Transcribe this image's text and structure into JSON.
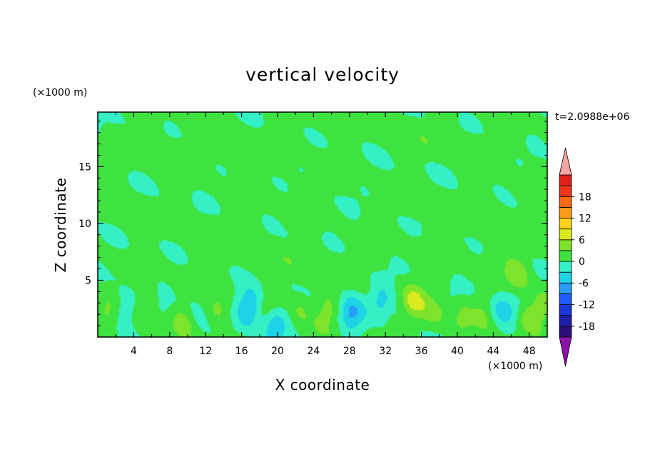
{
  "chart_data": {
    "type": "heatmap",
    "title": "vertical velocity",
    "xlabel": "X coordinate",
    "ylabel": "Z coordinate",
    "x_unit": "(×1000 m)",
    "y_unit": "(×1000 m)",
    "time_label": "t=2.0988e+06",
    "xlim": [
      0,
      50
    ],
    "ylim": [
      0,
      19.8
    ],
    "x_ticks": [
      4,
      8,
      12,
      16,
      20,
      24,
      28,
      32,
      36,
      40,
      44,
      48
    ],
    "y_ticks": [
      5,
      10,
      15
    ],
    "colorbar": {
      "levels": [
        -21,
        -18,
        -15,
        -12,
        -9,
        -6,
        -3,
        0,
        3,
        6,
        9,
        12,
        15,
        18,
        21
      ],
      "labels": [
        -18,
        -12,
        -6,
        0,
        6,
        12,
        18
      ],
      "colors": [
        "#2d0d7a",
        "#1f1fa8",
        "#1a35d9",
        "#1d5cff",
        "#2a9cf7",
        "#1fd3e6",
        "#34f0c4",
        "#3fe340",
        "#7ee32b",
        "#dbea1e",
        "#ffd21a",
        "#ff9a18",
        "#ff6a10",
        "#f03418",
        "#e0201a"
      ],
      "under_color": "#8a13a8",
      "over_color": "#f5a3a3"
    },
    "background_value": 1,
    "features": [
      {
        "x": 5.0,
        "z": 2.5,
        "value": 6
      },
      {
        "x": 9.8,
        "z": 1.6,
        "value": 5
      },
      {
        "x": 22.5,
        "z": 2.4,
        "value": 6
      },
      {
        "x": 35.0,
        "z": 3.0,
        "value": 8
      },
      {
        "x": 40.5,
        "z": 2.0,
        "value": 6
      },
      {
        "x": 47.5,
        "z": 1.8,
        "value": 5
      },
      {
        "x": 46.7,
        "z": 5.3,
        "value": 4
      },
      {
        "x": 2.5,
        "z": 2.2,
        "value": -4
      },
      {
        "x": 7.5,
        "z": 2.5,
        "value": -4
      },
      {
        "x": 17.0,
        "z": 2.8,
        "value": -5
      },
      {
        "x": 19.7,
        "z": 1.2,
        "value": -8
      },
      {
        "x": 28.0,
        "z": 2.0,
        "value": -4
      },
      {
        "x": 31.5,
        "z": 3.0,
        "value": -7
      },
      {
        "x": 44.5,
        "z": 2.5,
        "value": -5
      },
      {
        "x": 4.5,
        "z": 16.5,
        "value": 2
      },
      {
        "x": 11.0,
        "z": 16.0,
        "value": 2
      },
      {
        "x": 17.0,
        "z": 16.0,
        "value": 2
      },
      {
        "x": 23.5,
        "z": 18.5,
        "value": 2
      },
      {
        "x": 35.0,
        "z": 17.5,
        "value": 2
      },
      {
        "x": 44.0,
        "z": 17.0,
        "value": 2
      },
      {
        "x": 3.5,
        "z": 11.0,
        "value": 2
      },
      {
        "x": 16.0,
        "z": 10.0,
        "value": 2
      },
      {
        "x": 23.0,
        "z": 13.0,
        "value": 2
      },
      {
        "x": 35.0,
        "z": 12.0,
        "value": 2
      },
      {
        "x": 47.0,
        "z": 12.5,
        "value": 2
      },
      {
        "x": 38.0,
        "z": 8.0,
        "value": 2
      },
      {
        "x": 45.0,
        "z": 7.0,
        "value": 2
      },
      {
        "x": 12.0,
        "z": 6.5,
        "value": 2
      },
      {
        "x": 20.0,
        "z": 6.5,
        "value": 2
      },
      {
        "x": 29.0,
        "z": 7.0,
        "value": 2
      }
    ]
  }
}
